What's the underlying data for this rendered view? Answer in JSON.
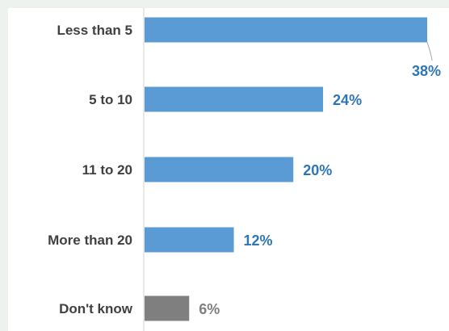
{
  "chart_data": {
    "type": "bar",
    "orientation": "horizontal",
    "categories": [
      "Less than 5",
      "5 to 10",
      "11 to 20",
      "More than 20",
      "Don't know"
    ],
    "values": [
      38,
      24,
      20,
      12,
      6
    ],
    "value_labels": [
      "38%",
      "24%",
      "20%",
      "12%",
      "6%"
    ],
    "bar_colors": [
      "#5b9bd5",
      "#5b9bd5",
      "#5b9bd5",
      "#5b9bd5",
      "#7f7f7f"
    ],
    "label_colors": [
      "#2e75b6",
      "#2e75b6",
      "#2e75b6",
      "#2e75b6",
      "#7f7f7f"
    ],
    "xlim": [
      0,
      38
    ],
    "title": "",
    "xlabel": "",
    "ylabel": "",
    "grid": false,
    "legend": "none"
  }
}
